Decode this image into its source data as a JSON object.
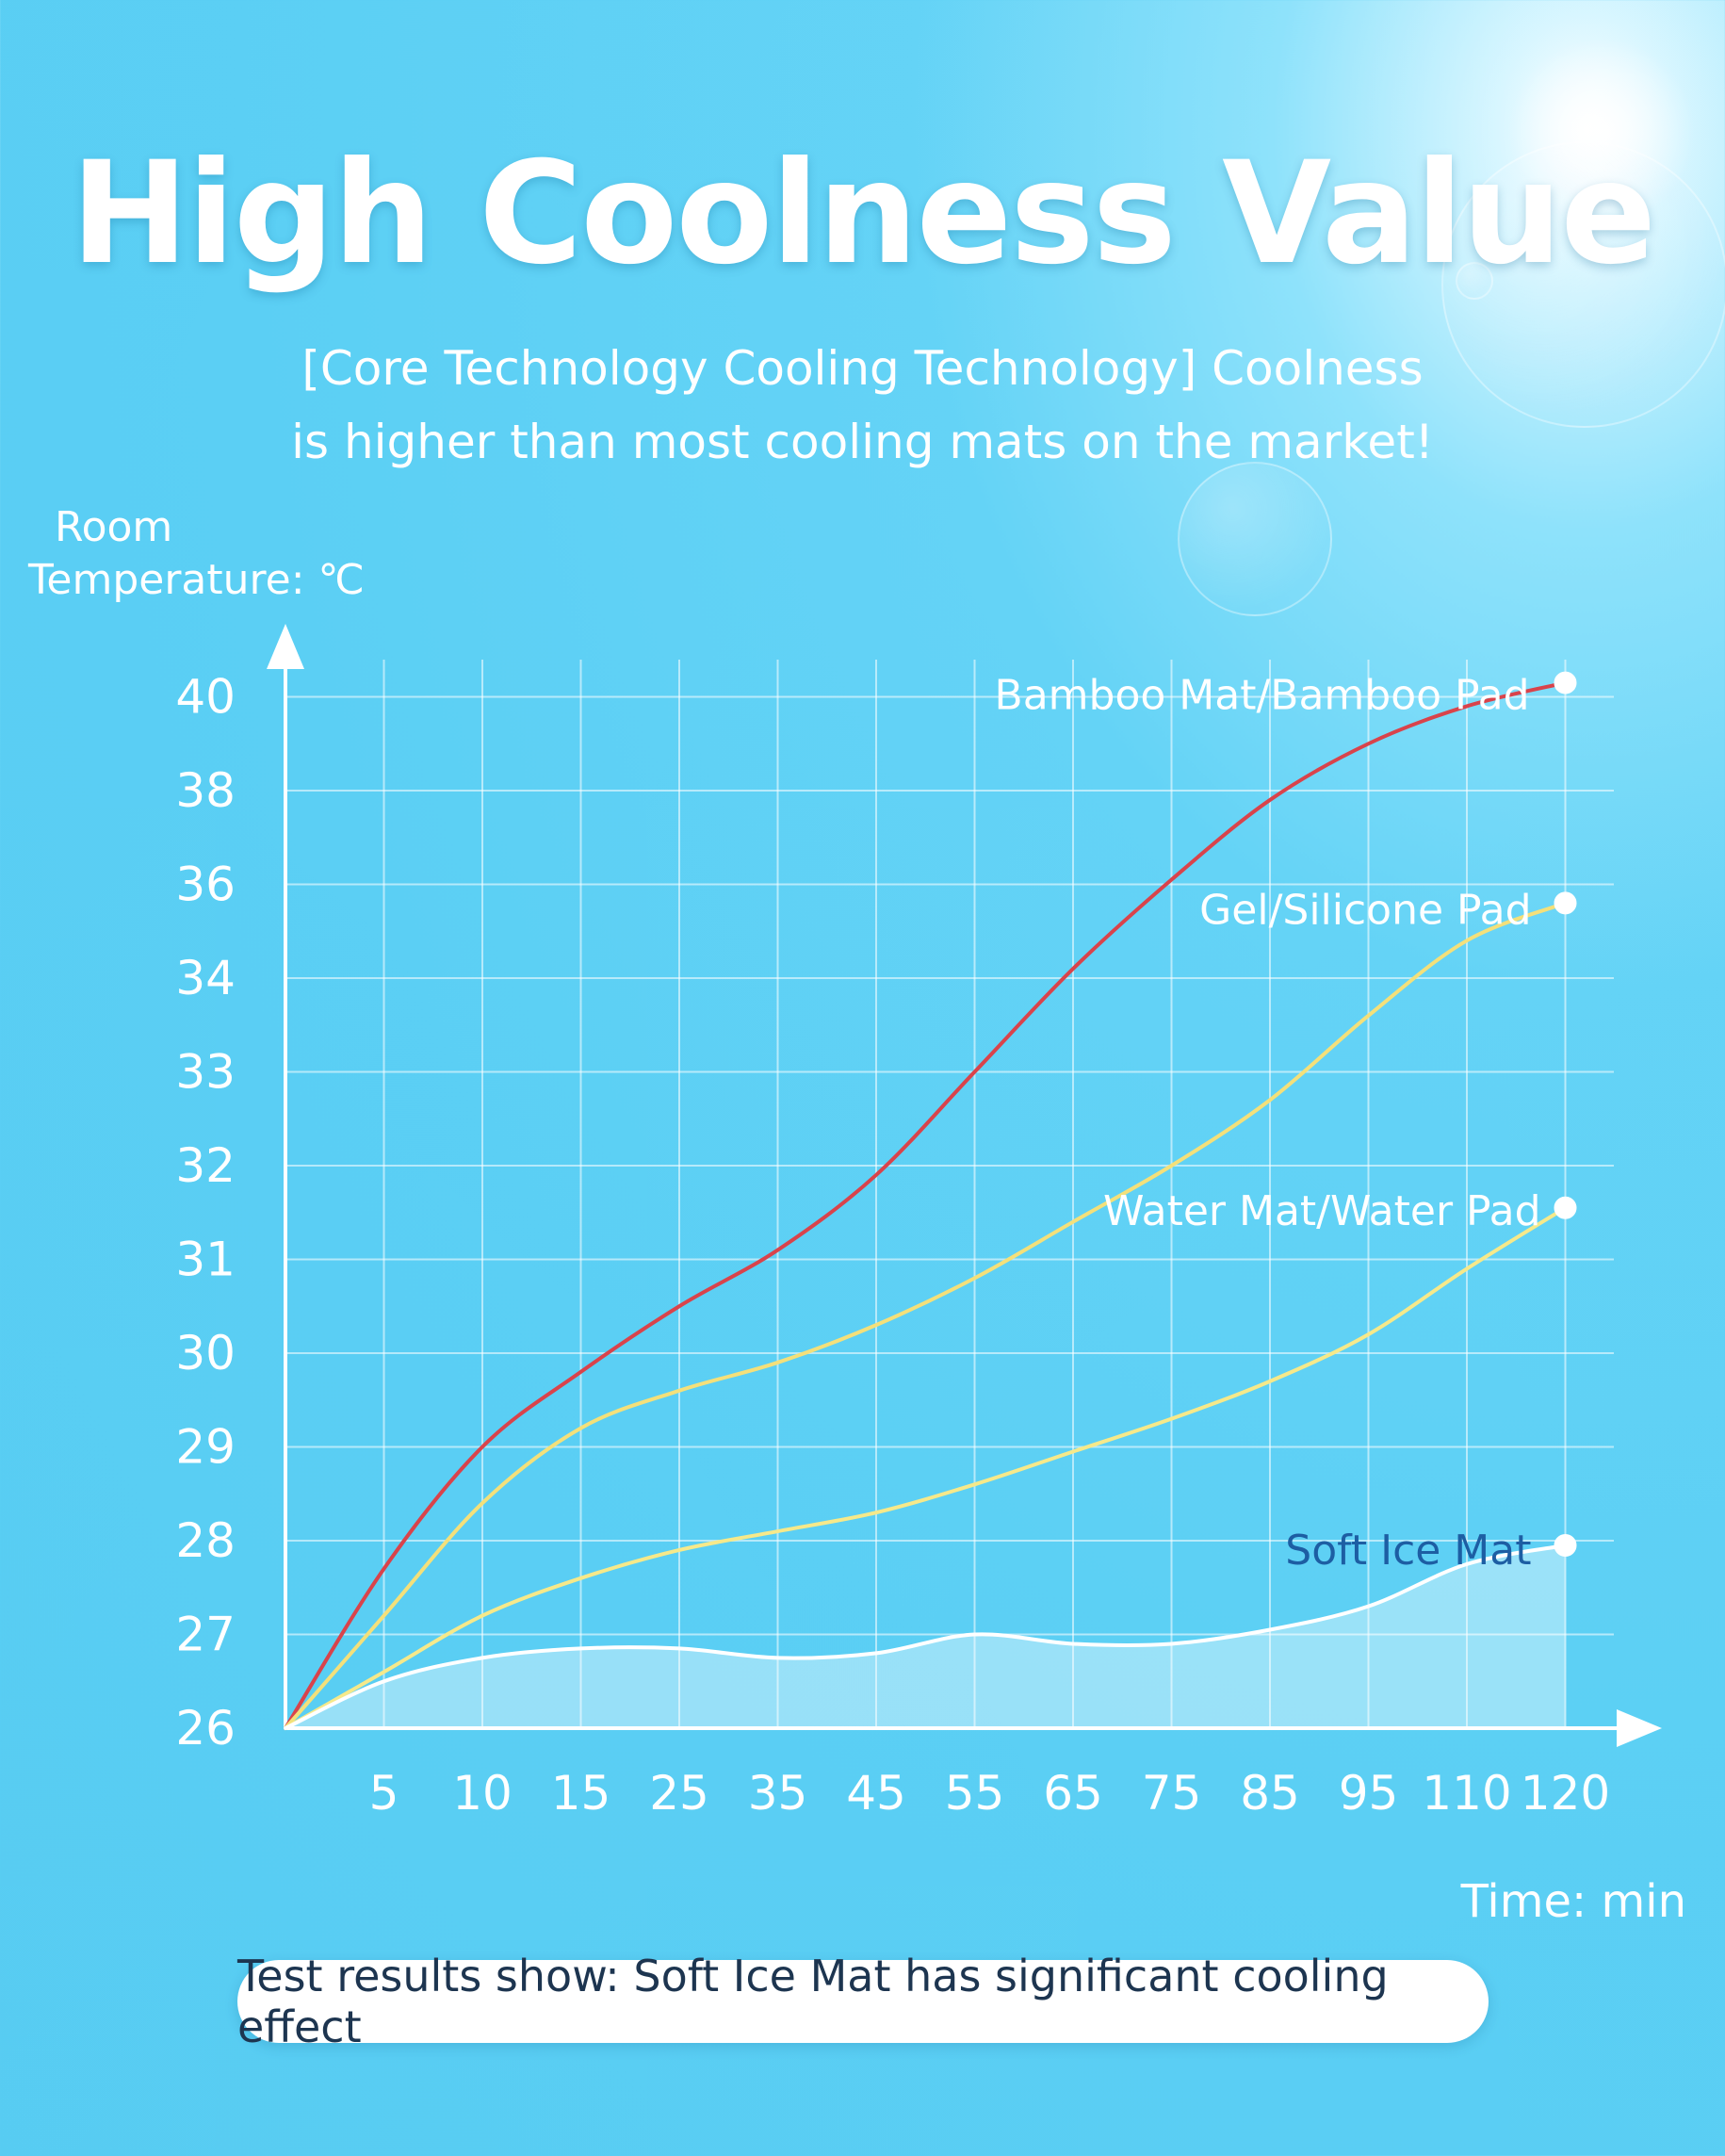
{
  "title": "High Coolness Value",
  "subtitle": {
    "line1": "[Core Technology Cooling Technology] Coolness",
    "line2": "is higher than most cooling mats on the market!"
  },
  "note": "Test results show: Soft Ice Mat has significant cooling effect",
  "colors": {
    "bamboo": "#d9434b",
    "gel": "#f4e07a",
    "water": "#f6e98a",
    "ice": "#ffffff",
    "grid": "#ffffff",
    "soft_ice_label": "#1d5ea3"
  },
  "chart_data": {
    "type": "line",
    "title": "High Coolness Value",
    "xlabel": "Time:  min",
    "ylabel_lines": [
      "Room",
      "Temperature: ℃"
    ],
    "x": [
      0,
      5,
      10,
      15,
      25,
      35,
      45,
      55,
      65,
      75,
      85,
      95,
      110,
      120
    ],
    "x_tick_labels": [
      "5",
      "10",
      "15",
      "25",
      "35",
      "45",
      "55",
      "65",
      "75",
      "85",
      "95",
      "110",
      "120"
    ],
    "y_tick_labels": [
      "26",
      "27",
      "28",
      "29",
      "30",
      "31",
      "32",
      "33",
      "34",
      "36",
      "38",
      "40"
    ],
    "grid": true,
    "series": [
      {
        "name": "Bamboo Mat/Bamboo Pad",
        "color_key": "bamboo",
        "values": [
          26,
          27.7,
          29.0,
          29.8,
          30.5,
          31.1,
          31.9,
          33.0,
          34.2,
          36.1,
          37.8,
          39.0,
          39.8,
          40.3
        ]
      },
      {
        "name": "Gel/Silicone Pad",
        "color_key": "gel",
        "values": [
          26,
          27.2,
          28.4,
          29.2,
          29.6,
          29.9,
          30.3,
          30.8,
          31.4,
          32.0,
          32.7,
          33.6,
          34.8,
          35.6
        ]
      },
      {
        "name": "Water Mat/Water Pad",
        "color_key": "water",
        "values": [
          26,
          26.6,
          27.2,
          27.6,
          27.9,
          28.1,
          28.3,
          28.6,
          28.95,
          29.3,
          29.7,
          30.2,
          30.9,
          31.55
        ]
      },
      {
        "name": "Soft Ice Mat",
        "color_key": "ice",
        "values": [
          26,
          26.5,
          26.75,
          26.85,
          26.85,
          26.75,
          26.8,
          27.0,
          26.9,
          26.9,
          27.05,
          27.3,
          27.75,
          27.95
        ]
      }
    ]
  }
}
